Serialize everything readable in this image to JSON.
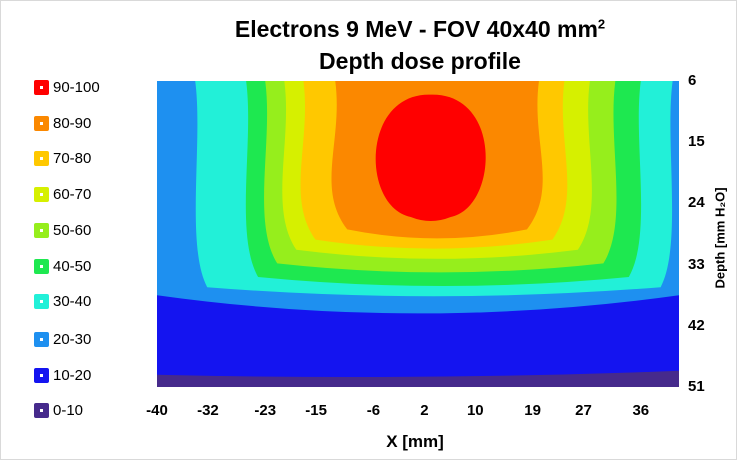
{
  "chart_data": {
    "type": "heatmap",
    "title": "Electrons 9 MeV - FOV 40x40 mm",
    "title_superscript": "2",
    "subtitle": "Depth dose profile",
    "xlabel": "X [mm]",
    "ylabel": "Depth [mm H₂O]",
    "x_ticks": [
      "-40",
      "-32",
      "-23",
      "-15",
      "-6",
      "2",
      "10",
      "19",
      "27",
      "36"
    ],
    "y_ticks": [
      "6",
      "15",
      "24",
      "33",
      "42",
      "51"
    ],
    "xlim": [
      -40,
      42
    ],
    "ylim": [
      51,
      6
    ],
    "grid": false,
    "legend_position": "left",
    "colorbar": [
      {
        "label": "90-100",
        "color": "#ff0000"
      },
      {
        "label": "80-90",
        "color": "#fb8800"
      },
      {
        "label": "70-80",
        "color": "#ffc800"
      },
      {
        "label": "60-70",
        "color": "#d6f000"
      },
      {
        "label": "50-60",
        "color": "#96ee1c"
      },
      {
        "label": "40-50",
        "color": "#1ee850"
      },
      {
        "label": "30-40",
        "color": "#22f0d8"
      },
      {
        "label": "20-30",
        "color": "#1e90f0"
      },
      {
        "label": "10-20",
        "color": "#1414f0"
      },
      {
        "label": "0-10",
        "color": "#462a8c"
      }
    ],
    "isodose_bounds": [
      {
        "level": "10",
        "depth_bottom": 49.5
      },
      {
        "level": "20",
        "depth_bottom": 40.5,
        "depth_bottom_edges": 37.5
      },
      {
        "level": "30",
        "x_range": [
          -34,
          41
        ],
        "depth_bottom": 37.5
      },
      {
        "level": "40",
        "x_range": [
          -26,
          36
        ],
        "depth_bottom": 36
      },
      {
        "level": "50",
        "x_range": [
          -23,
          32
        ],
        "depth_bottom": 34
      },
      {
        "level": "60",
        "x_range": [
          -20,
          28
        ],
        "depth_bottom": 32
      },
      {
        "level": "70",
        "x_range": [
          -17,
          24
        ],
        "depth_bottom": 30.5
      },
      {
        "level": "80",
        "x_range": [
          -12,
          20
        ],
        "depth_bottom": 29
      },
      {
        "level": "90",
        "x_range": [
          -7,
          13
        ],
        "depth_range": [
          8,
          26
        ]
      }
    ]
  }
}
